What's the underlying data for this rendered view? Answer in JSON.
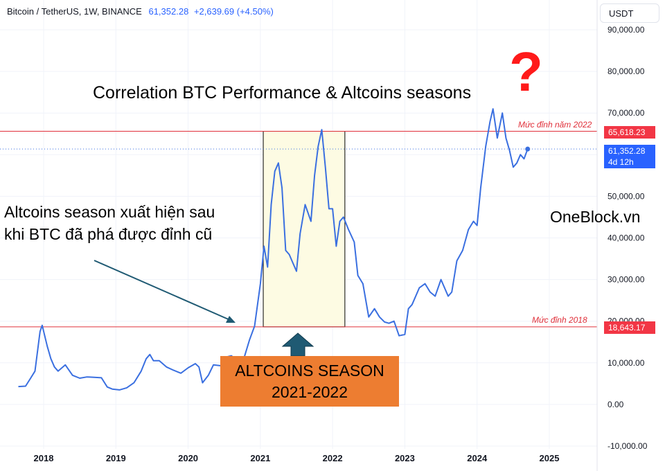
{
  "header": {
    "symbol": "Bitcoin / TetherUS, 1W, BINANCE",
    "price": "61,352.28",
    "change": "+2,639.69 (+4.50%)"
  },
  "currency_button": "USDT",
  "annotations": {
    "title": "Correlation BTC Performance & Altcoins seasons",
    "left_note_line1": "Altcoins season xuất hiện sau",
    "left_note_line2": "khi BTC đã phá được đỉnh cũ",
    "brand": "OneBlock.vn",
    "question_mark": "?",
    "season_line1": "ALTCOINS SEASON",
    "season_line2": "2021-2022"
  },
  "levels": {
    "peak_2022_label": "Mức đỉnh năm 2022",
    "peak_2022_value": "65,618.23",
    "peak_2018_label": "Mức đỉnh 2018",
    "peak_2018_value": "18,643.17",
    "current_value": "61,352.28",
    "countdown": "4d 12h"
  },
  "colors": {
    "series": "#3a6fe0",
    "level_line": "#e0303a",
    "highlight_fill": "#fdfbe3",
    "arrow_up": "#1f5a73",
    "arrow_diag": "#1f5a73",
    "season_box": "#ed7d31"
  },
  "chart_data": {
    "type": "line",
    "title": "",
    "xlabel": "",
    "ylabel": "",
    "ylim": [
      -10000,
      90000
    ],
    "xlim": [
      2017.55,
      2025.4
    ],
    "y_ticks": [
      "-10,000.00",
      "0.00",
      "10,000.00",
      "20,000.00",
      "30,000.00",
      "40,000.00",
      "50,000.00",
      "60,000.00",
      "70,000.00",
      "80,000.00",
      "90,000.00"
    ],
    "x_ticks": [
      "2018",
      "2019",
      "2020",
      "2021",
      "2022",
      "2023",
      "2024",
      "2025"
    ],
    "horizontal_lines": [
      65618.23,
      18643.17
    ],
    "current_price_line": 61352.28,
    "highlight_range": {
      "x": [
        2021.04,
        2022.17
      ],
      "y": [
        18643.17,
        65618.23
      ]
    },
    "series": [
      {
        "name": "",
        "x": [
          2017.65,
          2017.75,
          2017.82,
          2017.88,
          2017.95,
          2017.98,
          2018.05,
          2018.1,
          2018.15,
          2018.2,
          2018.3,
          2018.4,
          2018.5,
          2018.6,
          2018.7,
          2018.8,
          2018.88,
          2018.95,
          2019.05,
          2019.15,
          2019.25,
          2019.35,
          2019.42,
          2019.47,
          2019.52,
          2019.6,
          2019.7,
          2019.8,
          2019.9,
          2020.0,
          2020.1,
          2020.15,
          2020.2,
          2020.28,
          2020.35,
          2020.45,
          2020.55,
          2020.6,
          2020.68,
          2020.78,
          2020.85,
          2020.92,
          2021.0,
          2021.05,
          2021.1,
          2021.15,
          2021.2,
          2021.25,
          2021.3,
          2021.35,
          2021.4,
          2021.45,
          2021.5,
          2021.55,
          2021.62,
          2021.7,
          2021.75,
          2021.8,
          2021.85,
          2021.9,
          2021.95,
          2022.0,
          2022.05,
          2022.1,
          2022.15,
          2022.22,
          2022.3,
          2022.35,
          2022.42,
          2022.5,
          2022.58,
          2022.65,
          2022.72,
          2022.78,
          2022.85,
          2022.92,
          2023.0,
          2023.05,
          2023.1,
          2023.2,
          2023.28,
          2023.35,
          2023.42,
          2023.5,
          2023.6,
          2023.65,
          2023.72,
          2023.8,
          2023.88,
          2023.95,
          2024.0,
          2024.05,
          2024.12,
          2024.18,
          2024.22,
          2024.28,
          2024.35,
          2024.4,
          2024.45,
          2024.5,
          2024.55,
          2024.6,
          2024.65,
          2024.7
        ],
        "values": [
          4300,
          4400,
          6300,
          8000,
          17500,
          19000,
          14000,
          11000,
          9000,
          8000,
          9500,
          7000,
          6300,
          6600,
          6500,
          6400,
          4200,
          3700,
          3500,
          4000,
          5200,
          8000,
          11000,
          12000,
          10500,
          10500,
          9000,
          8200,
          7500,
          8800,
          9800,
          9000,
          5200,
          7000,
          9500,
          9300,
          11500,
          11700,
          10500,
          11500,
          15500,
          18800,
          29000,
          38000,
          33000,
          48000,
          56000,
          58000,
          52000,
          37000,
          36000,
          34000,
          32000,
          41000,
          48000,
          44000,
          55000,
          62000,
          66000,
          57000,
          47000,
          47000,
          38000,
          44000,
          45000,
          42000,
          39000,
          31000,
          29000,
          21000,
          23000,
          21000,
          19800,
          19500,
          20000,
          16500,
          16800,
          23000,
          24000,
          28000,
          29000,
          27000,
          26000,
          30000,
          26000,
          27000,
          34500,
          37000,
          42000,
          44000,
          43000,
          52000,
          62000,
          68000,
          71000,
          64000,
          70000,
          64000,
          61000,
          57000,
          58000,
          60000,
          59000,
          61352.28
        ]
      }
    ]
  }
}
